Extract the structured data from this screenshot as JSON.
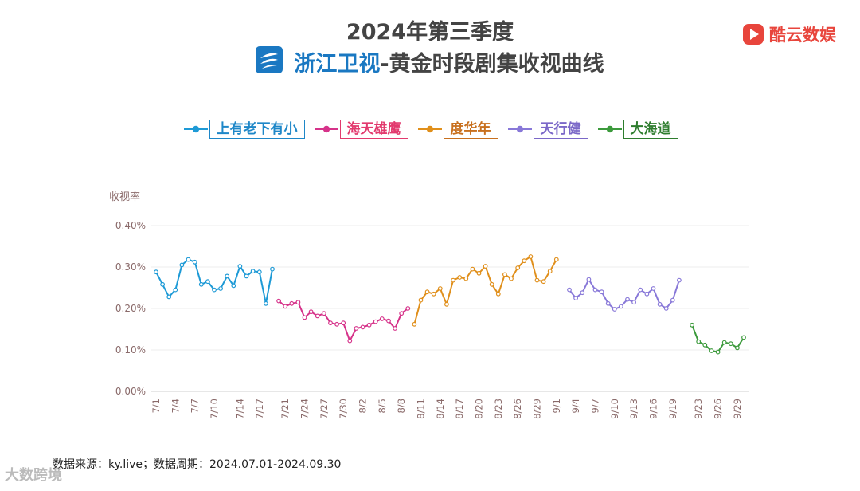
{
  "header": {
    "title_line1": "2024年第三季度",
    "channel": "浙江卫视",
    "title_rest": "-黄金时段剧集收视曲线",
    "brand": "酷云数娱"
  },
  "footer": {
    "source": "数据来源：ky.live；数据周期：2024.07.01-2024.09.30",
    "watermark": "大数跨境"
  },
  "chart_data": {
    "type": "line",
    "title": "2024年第三季度 浙江卫视-黄金时段剧集收视曲线",
    "ylabel": "收视率",
    "ylim": [
      0,
      0.4
    ],
    "yticks": [
      "0.00%",
      "0.10%",
      "0.20%",
      "0.30%",
      "0.40%"
    ],
    "legend_position": "top-center",
    "x_labels": [
      "7/1",
      "7/4",
      "7/7",
      "7/10",
      "7/14",
      "7/17",
      "7/21",
      "7/24",
      "7/27",
      "7/30",
      "8/2",
      "8/5",
      "8/8",
      "8/11",
      "8/14",
      "8/17",
      "8/20",
      "8/23",
      "8/26",
      "8/29",
      "9/1",
      "9/4",
      "9/7",
      "9/10",
      "9/13",
      "9/16",
      "9/19",
      "9/23",
      "9/26",
      "9/29"
    ],
    "x_label_index": [
      0,
      3,
      6,
      9,
      13,
      16,
      20,
      23,
      26,
      29,
      32,
      35,
      38,
      41,
      44,
      47,
      50,
      53,
      56,
      59,
      62,
      65,
      68,
      71,
      74,
      77,
      80,
      84,
      87,
      90
    ],
    "n_days": 92,
    "series": [
      {
        "name": "上有老下有小",
        "color": "#1e9ad6",
        "box_color": "#1e87c8",
        "start": 0,
        "values": [
          0.288,
          0.258,
          0.228,
          0.245,
          0.305,
          0.318,
          0.312,
          0.258,
          0.265,
          0.245,
          0.248,
          0.278,
          0.255,
          0.302,
          0.278,
          0.29,
          0.288,
          0.212,
          0.295
        ]
      },
      {
        "name": "海天雄鹰",
        "color": "#d6338a",
        "box_color": "#e23a6e",
        "start": 19,
        "values": [
          0.218,
          0.205,
          0.212,
          0.215,
          0.178,
          0.192,
          0.182,
          0.188,
          0.165,
          0.162,
          0.165,
          0.122,
          0.152,
          0.155,
          0.16,
          0.168,
          0.175,
          0.17,
          0.152,
          0.188,
          0.2
        ]
      },
      {
        "name": "度华年",
        "color": "#e08f1b",
        "box_color": "#c8701e",
        "start": 40,
        "values": [
          0.162,
          0.22,
          0.24,
          0.235,
          0.248,
          0.21,
          0.268,
          0.275,
          0.272,
          0.295,
          0.285,
          0.302,
          0.258,
          0.235,
          0.282,
          0.272,
          0.298,
          0.315,
          0.325,
          0.268,
          0.265,
          0.29,
          0.318
        ]
      },
      {
        "name": "天行健",
        "color": "#8878d8",
        "box_color": "#7b68c8",
        "start": 64,
        "values": [
          0.245,
          0.225,
          0.238,
          0.27,
          0.245,
          0.24,
          0.212,
          0.198,
          0.205,
          0.222,
          0.215,
          0.245,
          0.235,
          0.248,
          0.21,
          0.2,
          0.22,
          0.268
        ]
      },
      {
        "name": "大海道",
        "color": "#3c9a3c",
        "box_color": "#2e7d2e",
        "start": 83,
        "values": [
          0.16,
          0.12,
          0.112,
          0.098,
          0.095,
          0.118,
          0.115,
          0.105,
          0.13
        ]
      }
    ]
  }
}
